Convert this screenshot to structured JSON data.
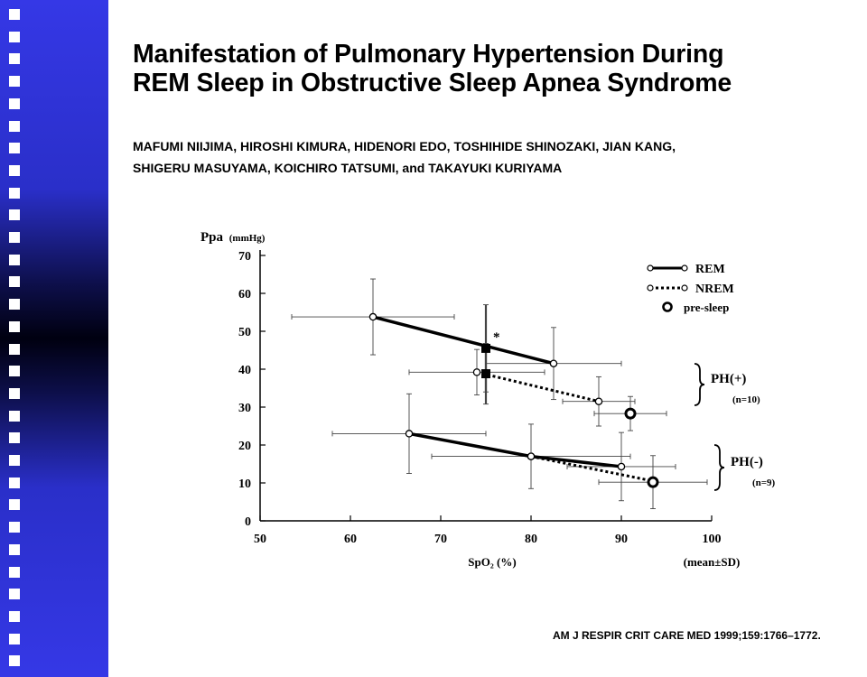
{
  "title": {
    "line1": "Manifestation of Pulmonary Hypertension During",
    "line2": "REM Sleep in Obstructive Sleep Apnea Syndrome"
  },
  "authors": {
    "line1": "MAFUMI NIIJIMA, HIROSHI KIMURA, HIDENORI EDO, TOSHIHIDE SHINOZAKI, JIAN KANG,",
    "line2": "SHIGERU MASUYAMA, KOICHIRO TATSUMI, and TAKAYUKI KURIYAMA"
  },
  "citation": "AM J RESPIR CRIT CARE MED 1999;159:1766–1772.",
  "chart_data": {
    "type": "line",
    "ylabel": "Ppa",
    "ylabel_unit": "(mmHg)",
    "xlabel": "SpO₂ (%)",
    "x_note": "(mean±SD)",
    "xlim": [
      50,
      100
    ],
    "ylim": [
      0,
      70
    ],
    "x_ticks": [
      50,
      60,
      70,
      80,
      90,
      100
    ],
    "y_ticks": [
      0,
      10,
      20,
      30,
      40,
      50,
      60,
      70
    ],
    "legend": {
      "position": "top-right",
      "items": [
        "REM",
        "NREM",
        "pre-sleep"
      ]
    },
    "groups": [
      {
        "label": "PH(+)",
        "n_label": "(n=10)",
        "rem": {
          "name": "REM",
          "points": [
            {
              "x": 62.5,
              "y": 53.8,
              "xsd": 9,
              "ysd": 10
            },
            {
              "x": 82.5,
              "y": 41.5,
              "xsd": 7.5,
              "ysd": 9.5
            }
          ],
          "mean": {
            "x": 75,
            "y": 45.5,
            "ysd": 11.5
          }
        },
        "nrem": {
          "name": "NREM",
          "points": [
            {
              "x": 74,
              "y": 39.2,
              "xsd": 7.5,
              "ysd": 6
            },
            {
              "x": 87.5,
              "y": 31.5,
              "xsd": 4,
              "ysd": 6.5
            }
          ],
          "mean": {
            "x": 75,
            "y": 38.8,
            "ysd": 8
          }
        },
        "presleep": {
          "x": 91,
          "y": 28.3,
          "xsd": 4,
          "ysd": 4.5
        },
        "annotation": "*"
      },
      {
        "label": "PH(-)",
        "n_label": "(n=9)",
        "rem": {
          "name": "REM",
          "points": [
            {
              "x": 66.5,
              "y": 23,
              "xsd": 8.5,
              "ysd": 10.5
            },
            {
              "x": 80,
              "y": 17,
              "xsd": 11,
              "ysd": 8.5
            },
            {
              "x": 90,
              "y": 14.3,
              "xsd": 6,
              "ysd": 9
            }
          ]
        },
        "nrem": {
          "name": "NREM",
          "points": [
            {
              "x": 80,
              "y": 17,
              "xsd": 0,
              "ysd": 0
            },
            {
              "x": 93.5,
              "y": 10.5,
              "xsd": 0,
              "ysd": 0
            }
          ]
        },
        "presleep": {
          "x": 93.5,
          "y": 10.2,
          "xsd": 6,
          "ysd": 7
        }
      }
    ]
  }
}
